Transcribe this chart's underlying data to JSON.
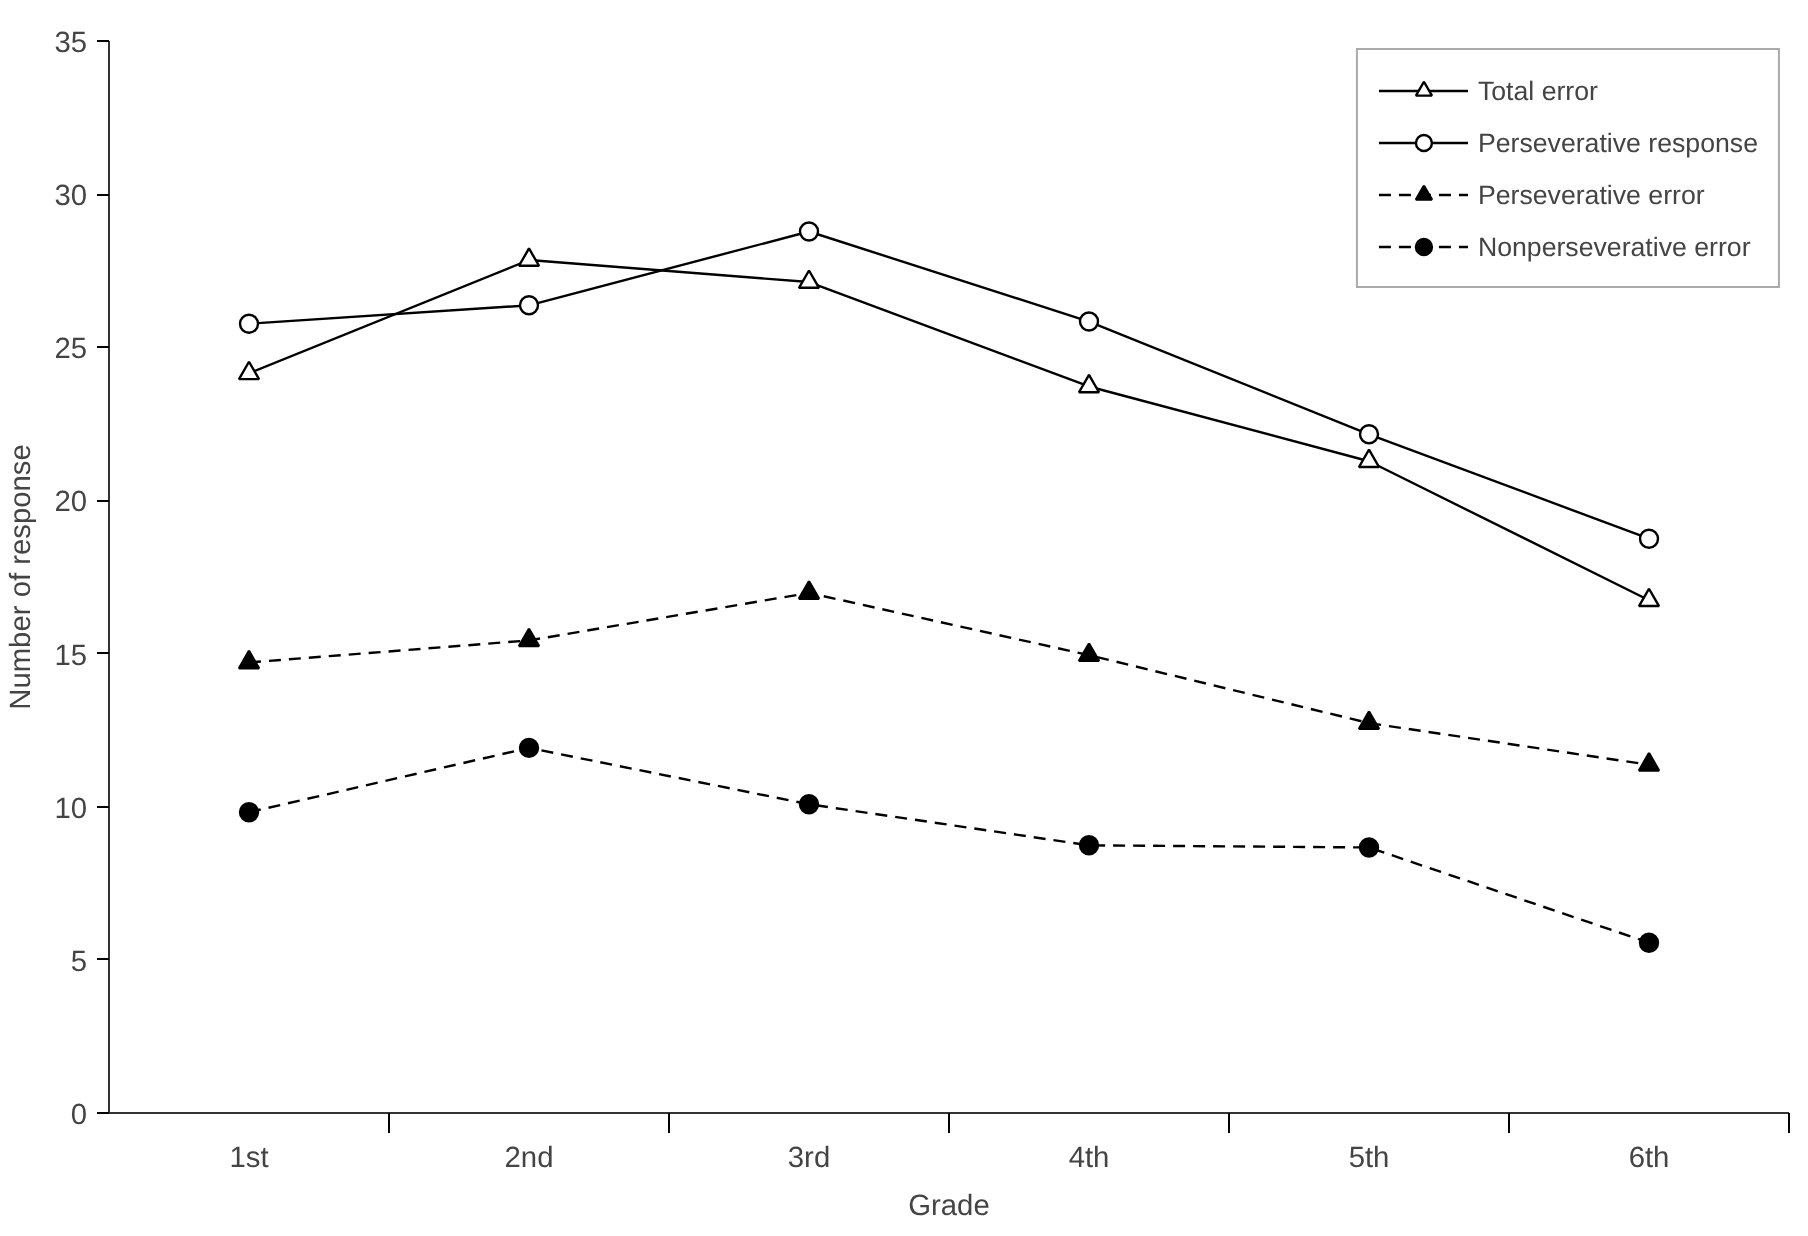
{
  "chart_data": {
    "type": "line",
    "xlabel": "Grade",
    "ylabel": "Number of response",
    "categories": [
      "1st",
      "2nd",
      "3rd",
      "4th",
      "5th",
      "6th"
    ],
    "ylim": [
      0,
      35
    ],
    "yticks": [
      0,
      5,
      10,
      15,
      20,
      25,
      30,
      35
    ],
    "grid": false,
    "legend": "top right",
    "series": [
      {
        "name": "Total error",
        "color": "#000000",
        "marker": "triangle",
        "line_style": "solid",
        "values": [
          24.15,
          27.85,
          27.13,
          23.72,
          21.28,
          16.74
        ]
      },
      {
        "name": "Perseverative response",
        "color": "#000000",
        "marker": "circle",
        "line_style": "solid",
        "values": [
          25.77,
          26.37,
          28.78,
          25.84,
          22.16,
          18.75
        ]
      },
      {
        "name": "Perseverative error",
        "color": "#000000",
        "marker": "triangle",
        "line_style": "dashed",
        "values": [
          14.71,
          15.43,
          16.98,
          14.95,
          12.73,
          11.37
        ]
      },
      {
        "name": "Nonperseverative error",
        "color": "#000000",
        "marker": "circle",
        "line_style": "dashed",
        "values": [
          9.82,
          11.92,
          10.08,
          8.74,
          8.67,
          5.56
        ]
      }
    ]
  }
}
